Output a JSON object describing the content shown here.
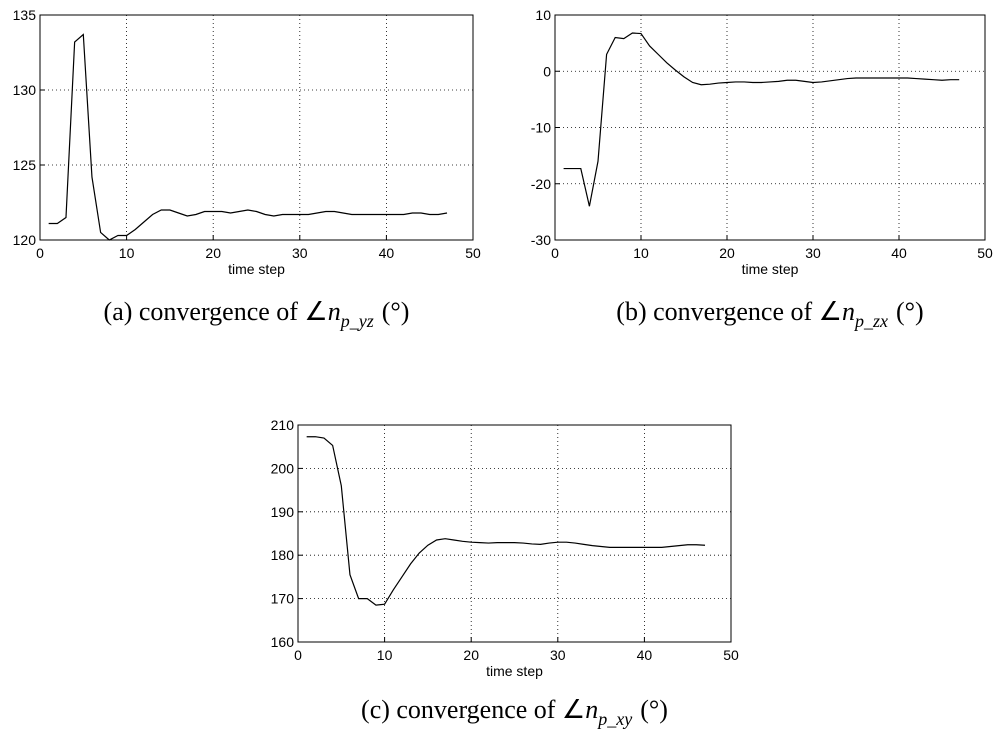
{
  "chart_data": [
    {
      "type": "line",
      "xlabel": "time step",
      "caption": "(a) convergence of ∠",
      "caption_symbol": "n",
      "caption_subscript": "p_yz",
      "caption_unit": "(°)",
      "x": [
        1,
        2,
        3,
        4,
        5,
        6,
        7,
        8,
        9,
        10,
        11,
        12,
        13,
        14,
        15,
        16,
        17,
        18,
        19,
        20,
        21,
        22,
        23,
        24,
        25,
        26,
        27,
        28,
        29,
        30,
        31,
        32,
        33,
        34,
        35,
        36,
        37,
        38,
        39,
        40,
        41,
        42,
        43,
        44,
        45,
        46,
        47
      ],
      "series": [
        {
          "color": "#000000",
          "values": [
            121.1,
            121.1,
            121.5,
            133.2,
            133.7,
            124.2,
            120.5,
            120.0,
            120.3,
            120.3,
            120.7,
            121.2,
            121.7,
            122.0,
            122.0,
            121.8,
            121.6,
            121.7,
            121.9,
            121.9,
            121.9,
            121.8,
            121.9,
            122.0,
            121.9,
            121.7,
            121.6,
            121.7,
            121.7,
            121.7,
            121.7,
            121.8,
            121.9,
            121.9,
            121.8,
            121.7,
            121.7,
            121.7,
            121.7,
            121.7,
            121.7,
            121.7,
            121.8,
            121.8,
            121.7,
            121.7,
            121.8
          ]
        }
      ],
      "xlim": [
        0,
        50
      ],
      "xticks": [
        0,
        10,
        20,
        30,
        40,
        50
      ],
      "ylim": [
        120,
        135
      ],
      "yticks": [
        120,
        125,
        130,
        135
      ],
      "grid": true
    },
    {
      "type": "line",
      "xlabel": "time step",
      "caption": "(b) convergence of ∠",
      "caption_symbol": "n",
      "caption_subscript": "p_zx",
      "caption_unit": "(°)",
      "x": [
        1,
        2,
        3,
        4,
        5,
        6,
        7,
        8,
        9,
        10,
        11,
        12,
        13,
        14,
        15,
        16,
        17,
        18,
        19,
        20,
        21,
        22,
        23,
        24,
        25,
        26,
        27,
        28,
        29,
        30,
        31,
        32,
        33,
        34,
        35,
        36,
        37,
        38,
        39,
        40,
        41,
        42,
        43,
        44,
        45,
        46,
        47
      ],
      "series": [
        {
          "color": "#000000",
          "values": [
            -17.3,
            -17.3,
            -17.3,
            -24,
            -16,
            3,
            6,
            5.8,
            6.8,
            6.7,
            4.5,
            3,
            1.5,
            0.2,
            -1,
            -2,
            -2.4,
            -2.3,
            -2.1,
            -2,
            -1.9,
            -1.9,
            -2,
            -2,
            -1.9,
            -1.8,
            -1.6,
            -1.6,
            -1.8,
            -2,
            -1.9,
            -1.7,
            -1.5,
            -1.3,
            -1.2,
            -1.2,
            -1.2,
            -1.2,
            -1.2,
            -1.2,
            -1.2,
            -1.3,
            -1.4,
            -1.5,
            -1.6,
            -1.5,
            -1.5
          ]
        }
      ],
      "xlim": [
        0,
        50
      ],
      "xticks": [
        0,
        10,
        20,
        30,
        40,
        50
      ],
      "ylim": [
        -30,
        10
      ],
      "yticks": [
        -30,
        -20,
        -10,
        0,
        10
      ],
      "grid": true
    },
    {
      "type": "line",
      "xlabel": "time step",
      "caption": "(c) convergence of ∠",
      "caption_symbol": "n",
      "caption_subscript": "p_xy",
      "caption_unit": "(°)",
      "x": [
        1,
        2,
        3,
        4,
        5,
        6,
        7,
        8,
        9,
        10,
        11,
        12,
        13,
        14,
        15,
        16,
        17,
        18,
        19,
        20,
        21,
        22,
        23,
        24,
        25,
        26,
        27,
        28,
        29,
        30,
        31,
        32,
        33,
        34,
        35,
        36,
        37,
        38,
        39,
        40,
        41,
        42,
        43,
        44,
        45,
        46,
        47
      ],
      "series": [
        {
          "color": "#000000",
          "values": [
            207.3,
            207.3,
            207,
            205.3,
            196,
            175.5,
            170,
            170,
            168.5,
            168.7,
            172,
            175,
            178,
            180.5,
            182.3,
            183.5,
            183.8,
            183.5,
            183.2,
            183,
            182.9,
            182.8,
            182.9,
            182.9,
            182.9,
            182.8,
            182.6,
            182.5,
            182.8,
            183,
            183,
            182.8,
            182.5,
            182.2,
            182,
            181.8,
            181.8,
            181.8,
            181.8,
            181.8,
            181.8,
            181.8,
            182,
            182.2,
            182.4,
            182.4,
            182.3
          ]
        }
      ],
      "xlim": [
        0,
        50
      ],
      "xticks": [
        0,
        10,
        20,
        30,
        40,
        50
      ],
      "ylim": [
        160,
        210
      ],
      "yticks": [
        160,
        170,
        180,
        190,
        200,
        210
      ],
      "grid": true
    }
  ]
}
